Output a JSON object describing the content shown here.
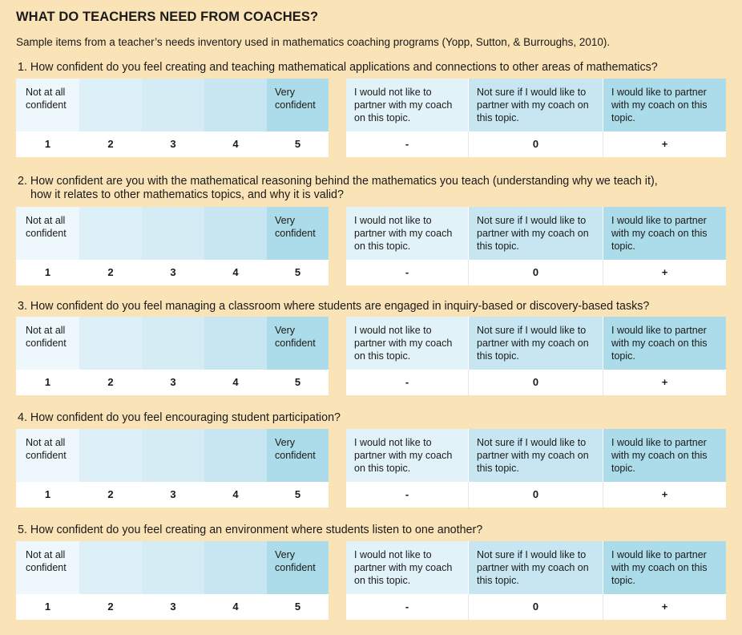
{
  "title": "WHAT DO TEACHERS NEED FROM COACHES?",
  "subtitle": "Sample items from a teacher’s needs inventory used in mathematics coaching programs (Yopp, Sutton, & Burroughs, 2010).",
  "scale": {
    "low_label": "Not at all confident",
    "high_label": "Very confident",
    "numbers": [
      "1",
      "2",
      "3",
      "4",
      "5"
    ]
  },
  "partner": {
    "options": [
      "I would not like to partner with my coach on this topic.",
      "Not sure if I would like to partner with my coach on this topic.",
      "I would like to partner with my coach on this topic."
    ],
    "symbols": [
      "-",
      "0",
      "+"
    ]
  },
  "questions": [
    {
      "line1": "1. How confident do you feel creating and teaching mathematical applications and connections to other areas of mathematics?",
      "line2": ""
    },
    {
      "line1": "2. How confident are you with the mathematical reasoning behind the mathematics you teach (understanding why we teach it),",
      "line2": "how it relates to other mathematics topics, and why it is valid?"
    },
    {
      "line1": "3. How confident do you feel managing a classroom where students are engaged in inquiry-based or discovery-based tasks?",
      "line2": ""
    },
    {
      "line1": "4. How confident do you feel encouraging student participation?",
      "line2": ""
    },
    {
      "line1": "5. How confident do you feel creating an environment where students listen to one another?",
      "line2": ""
    }
  ],
  "colors": {
    "background": "#fbe3b8",
    "cell_lightest": "#eef7fb",
    "cell_darkest": "#acdbe9"
  }
}
